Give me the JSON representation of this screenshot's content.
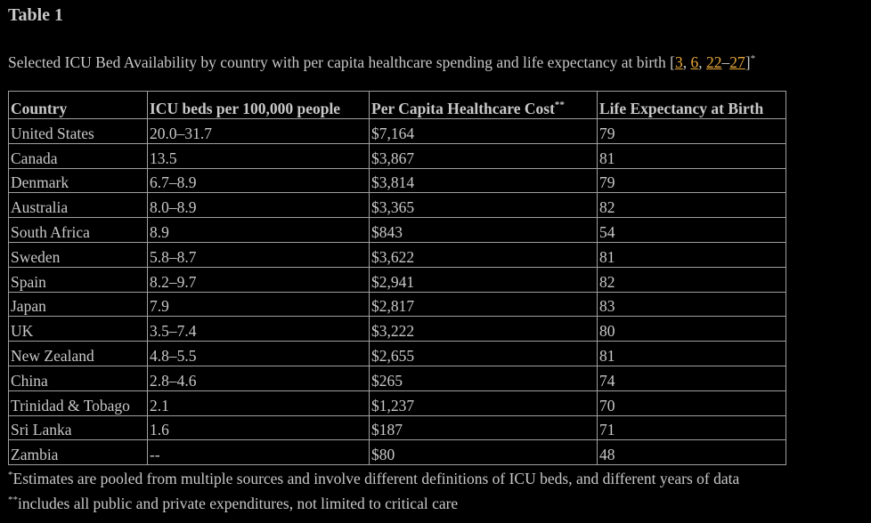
{
  "title": "Table 1",
  "caption": {
    "text": "Selected ICU Bed Availability by country with per capita healthcare spending and life expectancy at birth [",
    "refs": [
      "3",
      "6",
      "22",
      "27"
    ],
    "sep1": ", ",
    "sep2": ", ",
    "dash": "–",
    "close": "]",
    "mark": "*"
  },
  "table": {
    "headers": [
      "Country",
      "ICU beds per 100,000 people",
      "Per Capita Healthcare Cost",
      "Life Expectancy at Birth"
    ],
    "header_mark": "**",
    "rows": [
      [
        "United States",
        "20.0–31.7",
        "$7,164",
        "79"
      ],
      [
        "Canada",
        "13.5",
        "$3,867",
        "81"
      ],
      [
        "Denmark",
        "6.7–8.9",
        "$3,814",
        "79"
      ],
      [
        "Australia",
        "8.0–8.9",
        "$3,365",
        "82"
      ],
      [
        "South Africa",
        "8.9",
        "$843",
        "54"
      ],
      [
        "Sweden",
        "5.8–8.7",
        "$3,622",
        "81"
      ],
      [
        "Spain",
        "8.2–9.7",
        "$2,941",
        "82"
      ],
      [
        "Japan",
        "7.9",
        "$2,817",
        "83"
      ],
      [
        "UK",
        "3.5–7.4",
        "$3,222",
        "80"
      ],
      [
        "New Zealand",
        "4.8–5.5",
        "$2,655",
        "81"
      ],
      [
        "China",
        "2.8–4.6",
        "$265",
        "74"
      ],
      [
        "Trinidad & Tobago",
        "2.1",
        "$1,237",
        "70"
      ],
      [
        "Sri Lanka",
        "1.6",
        "$187",
        "71"
      ],
      [
        "Zambia",
        "--",
        "$80",
        "48"
      ]
    ]
  },
  "footnotes": [
    {
      "mark": "*",
      "text": "Estimates are pooled from multiple sources and involve different definitions of ICU beds, and different years of data"
    },
    {
      "mark": "**",
      "text": "includes all public and private expenditures, not limited to critical care"
    }
  ]
}
